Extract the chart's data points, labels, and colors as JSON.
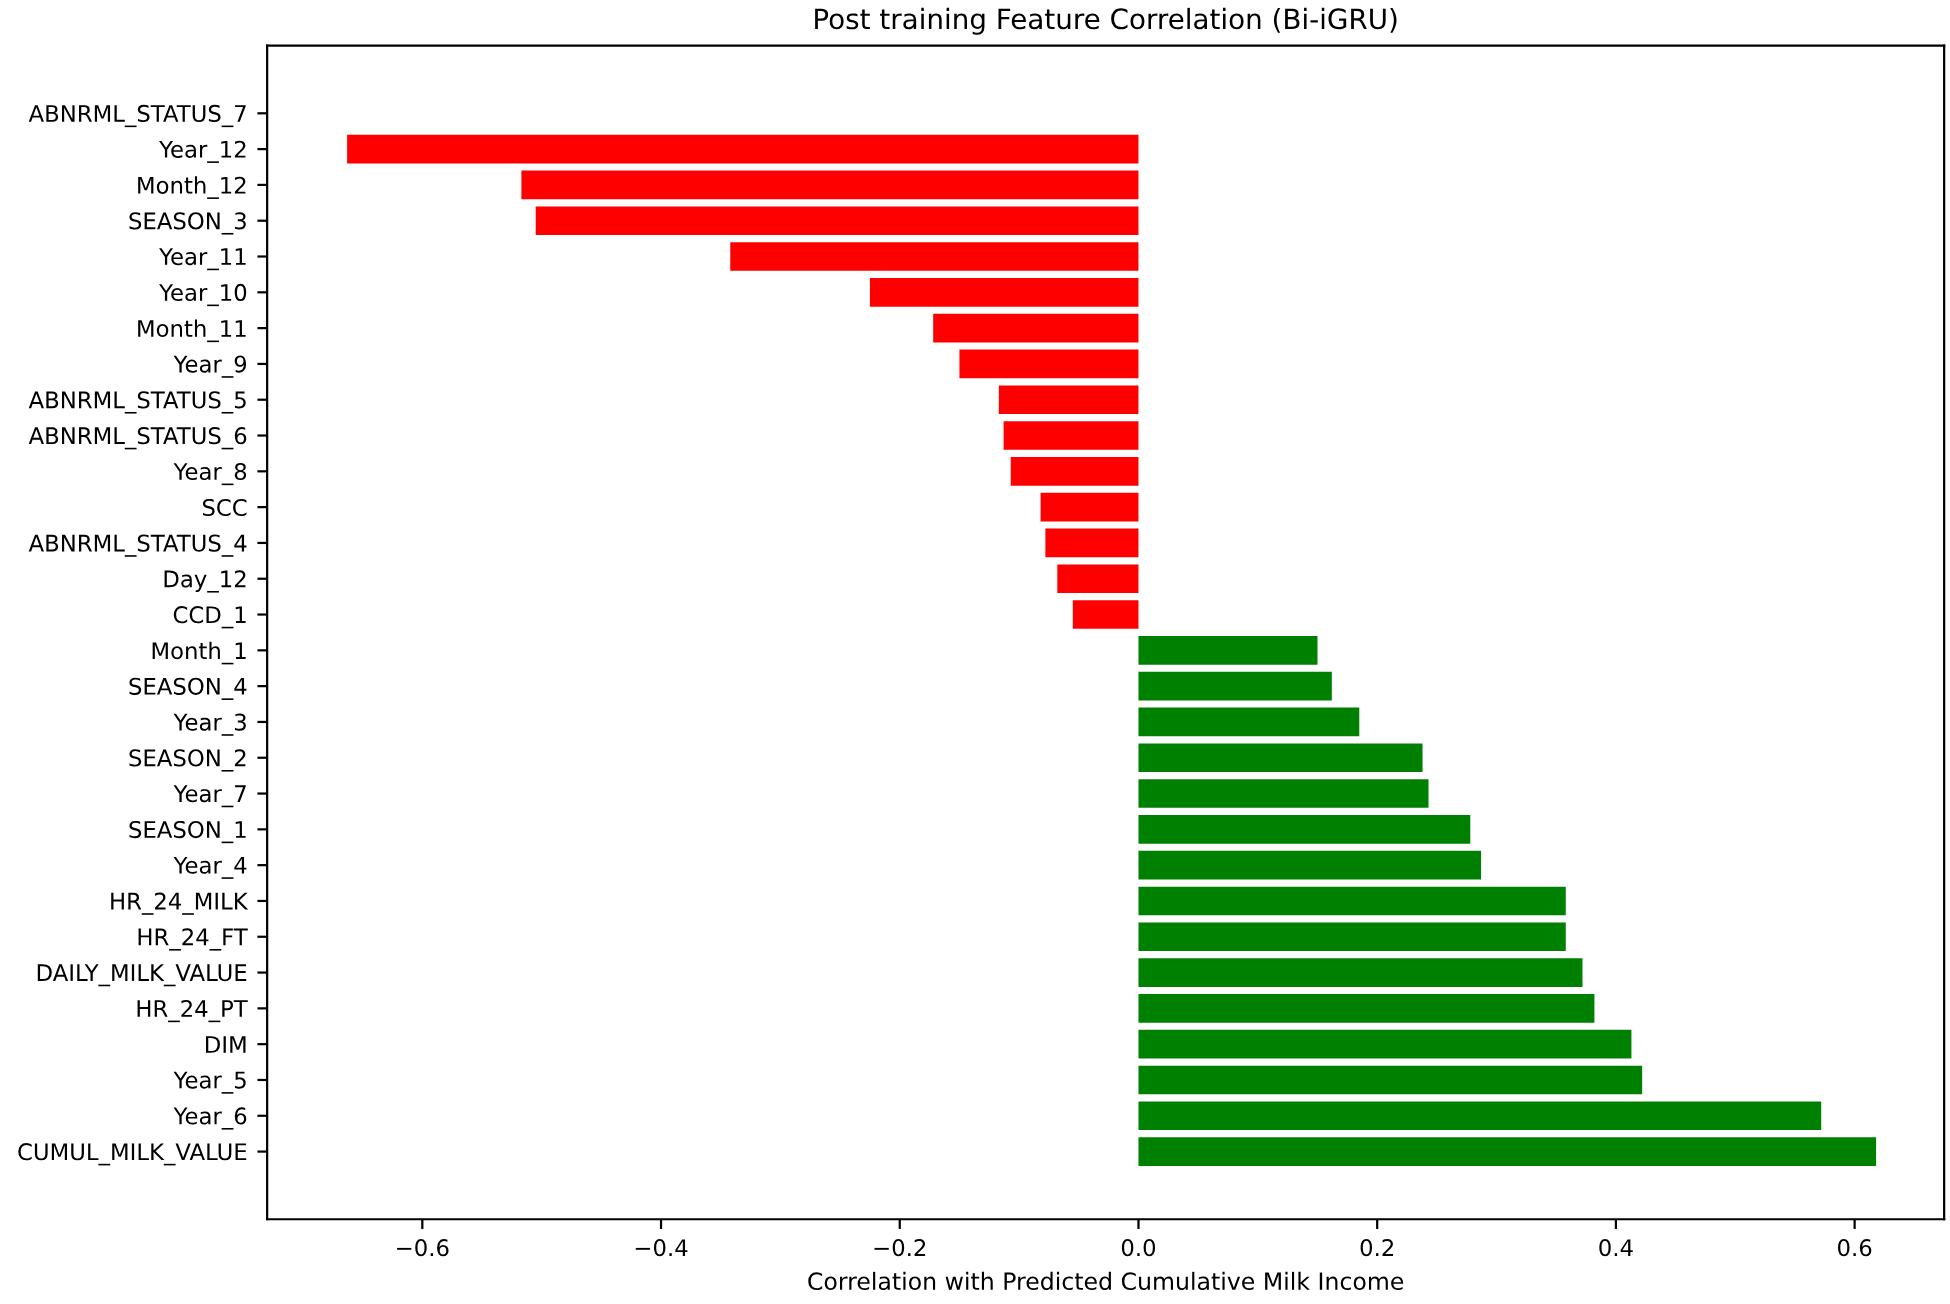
{
  "chart_data": {
    "type": "bar",
    "orientation": "horizontal",
    "title": "Post training Feature Correlation (Bi-iGRU)",
    "xlabel": "Correlation with Predicted Cumulative Milk Income",
    "categories": [
      "ABNRML_STATUS_7",
      "Year_12",
      "Month_12",
      "SEASON_3",
      "Year_11",
      "Year_10",
      "Month_11",
      "Year_9",
      "ABNRML_STATUS_5",
      "ABNRML_STATUS_6",
      "Year_8",
      "SCC",
      "ABNRML_STATUS_4",
      "Day_12",
      "CCD_1",
      "Month_1",
      "SEASON_4",
      "Year_3",
      "SEASON_2",
      "Year_7",
      "SEASON_1",
      "Year_4",
      "HR_24_MILK",
      "HR_24_FT",
      "DAILY_MILK_VALUE",
      "HR_24_PT",
      "DIM",
      "Year_5",
      "Year_6",
      "CUMUL_MILK_VALUE"
    ],
    "values": [
      0.0,
      -0.663,
      -0.517,
      -0.505,
      -0.342,
      -0.225,
      -0.172,
      -0.15,
      -0.117,
      -0.113,
      -0.107,
      -0.082,
      -0.078,
      -0.068,
      -0.055,
      0.15,
      0.162,
      0.185,
      0.238,
      0.243,
      0.278,
      0.287,
      0.358,
      0.358,
      0.372,
      0.382,
      0.413,
      0.422,
      0.572,
      0.618
    ],
    "colors": [
      "#ff0000",
      "#ff0000",
      "#ff0000",
      "#ff0000",
      "#ff0000",
      "#ff0000",
      "#ff0000",
      "#ff0000",
      "#ff0000",
      "#ff0000",
      "#ff0000",
      "#ff0000",
      "#ff0000",
      "#ff0000",
      "#ff0000",
      "#008000",
      "#008000",
      "#008000",
      "#008000",
      "#008000",
      "#008000",
      "#008000",
      "#008000",
      "#008000",
      "#008000",
      "#008000",
      "#008000",
      "#008000",
      "#008000",
      "#008000"
    ],
    "xlim": [
      -0.73,
      0.675
    ],
    "xticks": [
      {
        "value": -0.6,
        "label": "−0.6"
      },
      {
        "value": -0.4,
        "label": "−0.4"
      },
      {
        "value": -0.2,
        "label": "−0.2"
      },
      {
        "value": 0.0,
        "label": "0.0"
      },
      0.2,
      0.4,
      0.6
    ]
  }
}
